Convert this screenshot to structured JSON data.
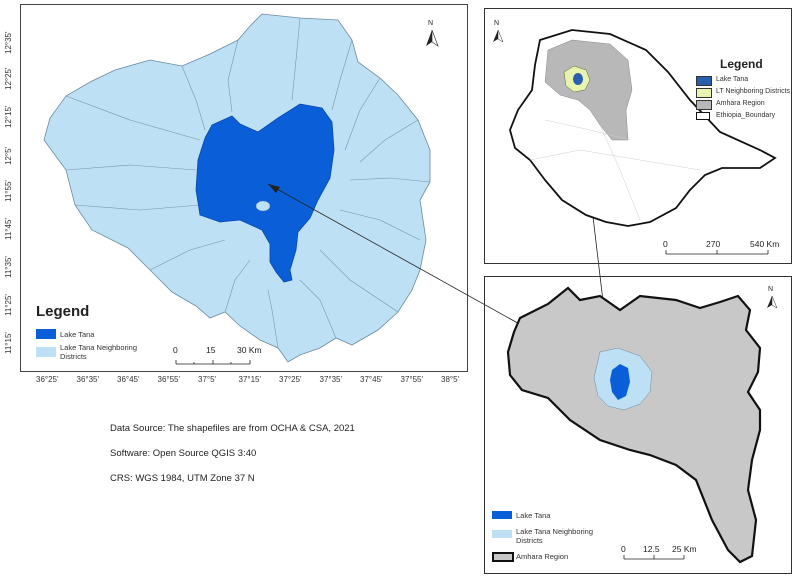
{
  "main_map": {
    "lat_ticks": [
      "12°35'",
      "12°25'",
      "12°15'",
      "12°5'",
      "11°55'",
      "11°45'",
      "11°35'",
      "11°25'",
      "11°15'"
    ],
    "lon_ticks": [
      "36°25'",
      "36°35'",
      "36°45'",
      "36°55'",
      "37°5'",
      "37°15'",
      "37°25'",
      "37°35'",
      "37°45'",
      "37°55'",
      "38°5'"
    ],
    "legend_title": "Legend",
    "legend_items": [
      {
        "label": "Lake Tana",
        "color": "#0a5fd8"
      },
      {
        "label": "Lake Tana Neighboring\nDistricts",
        "color": "#bde0f5"
      }
    ],
    "scale": {
      "labels": [
        "0",
        "15",
        "30 Km"
      ]
    },
    "north_label": "N"
  },
  "notes": {
    "data_source": "Data Source:  The shapefiles are from OCHA & CSA, 2021",
    "software": "Software:  Open Source QGIS 3:40",
    "crs": "CRS: WGS 1984, UTM Zone 37 N"
  },
  "ethiopia_inset": {
    "legend_title": "Legend",
    "legend_items": [
      {
        "label": "Lake Tana",
        "color": "#2a5fb0"
      },
      {
        "label": "LT Neighboring Districts",
        "color": "#e8f3b0"
      },
      {
        "label": "Amhara Region",
        "color": "#b8b8b8"
      },
      {
        "label": "Ethiopia_Boundary",
        "color": "#ffffff"
      }
    ],
    "scale": {
      "labels": [
        "0",
        "270",
        "540 Km"
      ]
    },
    "north_label": "N"
  },
  "amhara_inset": {
    "legend_items": [
      {
        "label": "Lake Tana",
        "color": "#0a5fd8"
      },
      {
        "label": "Lake Tana Neighboring\nDistricts",
        "color": "#bde0f5"
      },
      {
        "label": "Amhara Region",
        "color": "#c8c8c8"
      }
    ],
    "scale": {
      "labels": [
        "0",
        "12.5",
        "25 Km"
      ]
    },
    "north_label": "N"
  }
}
